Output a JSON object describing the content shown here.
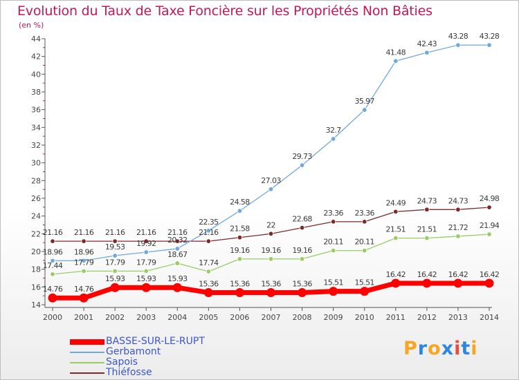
{
  "title": "Evolution du Taux de Taxe Foncière sur les Propriétés Non Bâties",
  "unit_label": "(en %)",
  "logo": {
    "text": "Proxiti",
    "colors": [
      "#f5a623",
      "#2e86de",
      "#f5a623",
      "#2e86de",
      "#e74c3c",
      "#2e86de",
      "#f5a623"
    ]
  },
  "chart_data": {
    "type": "line",
    "title": "Evolution du Taux de Taxe Foncière sur les Propriétés Non Bâties",
    "ylabel": "(en %)",
    "xlabel": "",
    "x": [
      "2000",
      "2001",
      "2002",
      "2003",
      "2004",
      "2005",
      "2006",
      "2007",
      "2008",
      "2009",
      "2010",
      "2011",
      "2012",
      "2013",
      "2014"
    ],
    "ylim": [
      14,
      44
    ],
    "yticks": [
      "14",
      "16",
      "18",
      "20",
      "22",
      "24",
      "26",
      "28",
      "30",
      "32",
      "34",
      "36",
      "38",
      "40",
      "42",
      "44"
    ],
    "grid": false,
    "legend_position": "bottom-left",
    "series": [
      {
        "name": "BASSE-SUR-LE-RUPT",
        "color": "#ff0000",
        "values": [
          14.76,
          14.76,
          15.93,
          15.93,
          15.93,
          15.36,
          15.36,
          15.36,
          15.36,
          15.51,
          15.51,
          16.42,
          16.42,
          16.42,
          16.42
        ],
        "labels": [
          "14.76",
          "14.76",
          "15.93",
          "15.93",
          "15.93",
          "15.36",
          "15.36",
          "15.36",
          "15.36",
          "15.51",
          "15.51",
          "16.42",
          "16.42",
          "16.42",
          "16.42"
        ]
      },
      {
        "name": "Gerbamont",
        "color": "#6fa8dc",
        "values": [
          18.96,
          18.96,
          19.53,
          19.92,
          20.32,
          22.35,
          24.58,
          27.03,
          29.73,
          32.7,
          35.97,
          41.48,
          42.43,
          43.28,
          43.28
        ],
        "labels": [
          "18.96",
          "18.96",
          "19.53",
          "19.92",
          "20.32",
          "22.35",
          "24.58",
          "27.03",
          "29.73",
          "32.7",
          "35.97",
          "41.48",
          "42.43",
          "43.28",
          "43.28"
        ]
      },
      {
        "name": "Sapois",
        "color": "#99cc66",
        "values": [
          17.44,
          17.79,
          17.79,
          17.79,
          18.67,
          17.74,
          19.16,
          19.16,
          19.16,
          20.11,
          20.11,
          21.51,
          21.51,
          21.72,
          21.94
        ],
        "labels": [
          "17.44",
          "17.79",
          "17.79",
          "17.79",
          "18.67",
          "17.74",
          "19.16",
          "19.16",
          "19.16",
          "20.11",
          "20.11",
          "21.51",
          "21.51",
          "21.72",
          "21.94"
        ]
      },
      {
        "name": "Thiéfosse",
        "color": "#7b2a2a",
        "values": [
          21.16,
          21.16,
          21.16,
          21.16,
          21.16,
          21.16,
          21.58,
          22,
          22.68,
          23.36,
          23.36,
          24.49,
          24.73,
          24.73,
          24.98
        ],
        "labels": [
          "21.16",
          "21.16",
          "21.16",
          "21.16",
          "21.16",
          "21.16",
          "21.58",
          "22",
          "22.68",
          "23.36",
          "23.36",
          "24.49",
          "24.73",
          "24.73",
          "24.98"
        ]
      }
    ]
  }
}
